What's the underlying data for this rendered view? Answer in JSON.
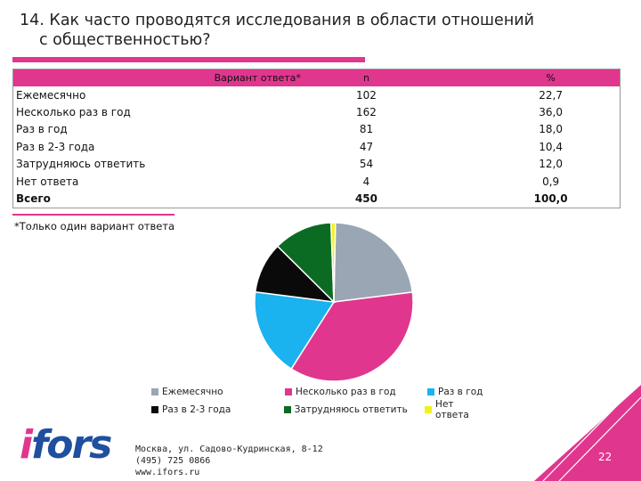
{
  "title": {
    "line1": "14. Как часто проводятся исследования в области отношений",
    "line2": "с общественностью?"
  },
  "table": {
    "headers": {
      "label": "Вариант ответа*",
      "n": "n",
      "pct": "%"
    },
    "rows": [
      {
        "label": "Ежемесячно",
        "n": "102",
        "pct": "22,7"
      },
      {
        "label": "Несколько раз в год",
        "n": "162",
        "pct": "36,0"
      },
      {
        "label": "Раз в год",
        "n": "81",
        "pct": "18,0"
      },
      {
        "label": "Раз в 2-3 года",
        "n": "47",
        "pct": "10,4"
      },
      {
        "label": "Затрудняюсь ответить",
        "n": "54",
        "pct": "12,0"
      },
      {
        "label": "Нет ответа",
        "n": "4",
        "pct": "0,9"
      }
    ],
    "total": {
      "label": "Всего",
      "n": "450",
      "pct": "100,0"
    }
  },
  "note": "*Только один вариант ответа",
  "chart_data": {
    "type": "pie",
    "categories": [
      "Ежемесячно",
      "Несколько раз в год",
      "Раз в год",
      "Раз в 2-3 года",
      "Затрудняюсь ответить",
      "Нет ответа"
    ],
    "values": [
      22.7,
      36.0,
      18.0,
      10.4,
      12.0,
      0.9
    ],
    "colors": [
      "#9aa6b4",
      "#e0368e",
      "#1ab2ef",
      "#0a0a0a",
      "#0b6b22",
      "#f2f21a"
    ],
    "legend": "bottom"
  },
  "footer": {
    "logo": "ifors",
    "address_line1": "Москва, ул. Садово-Кудринская, 8-12",
    "address_line2": "(495) 725 0866",
    "address_line3": "www.ifors.ru",
    "page_number": "22",
    "accent_color": "#e0368e"
  }
}
